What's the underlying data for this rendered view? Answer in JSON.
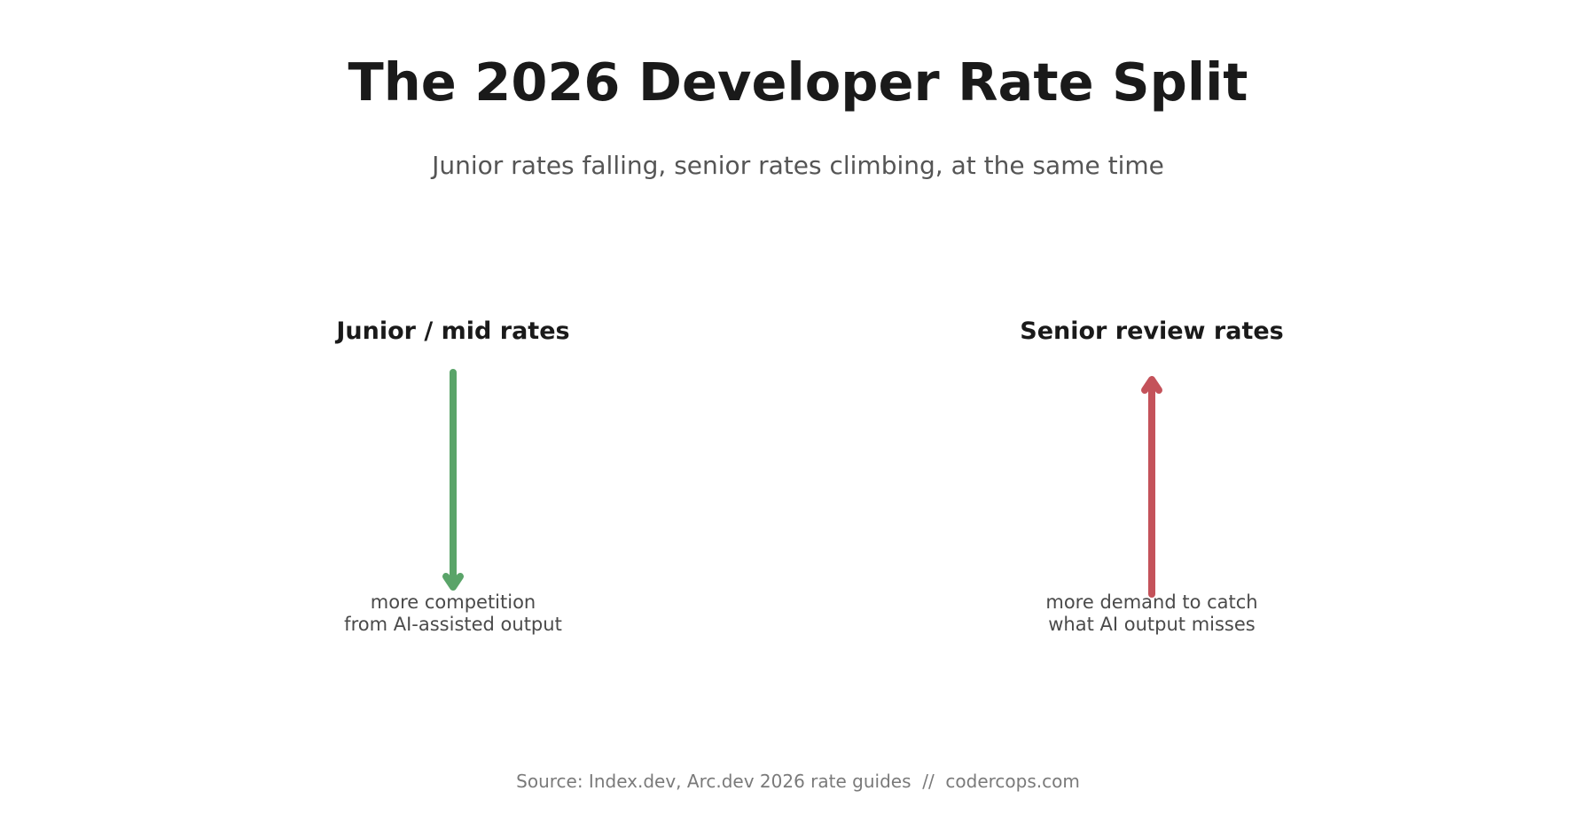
{
  "title": "The 2026 Developer Rate Split",
  "subtitle": "Junior rates falling, senior rates climbing, at the same time",
  "panels": [
    {
      "label": "Junior / mid rates",
      "direction": "down",
      "color": "#5aa469",
      "note_lines": [
        "more competition",
        "from AI-assisted output"
      ]
    },
    {
      "label": "Senior review rates",
      "direction": "up",
      "color": "#c4525a",
      "note_lines": [
        "more demand to catch",
        "what AI output misses"
      ]
    }
  ],
  "source": "Source: Index.dev, Arc.dev 2026 rate guides  //  codercops.com"
}
